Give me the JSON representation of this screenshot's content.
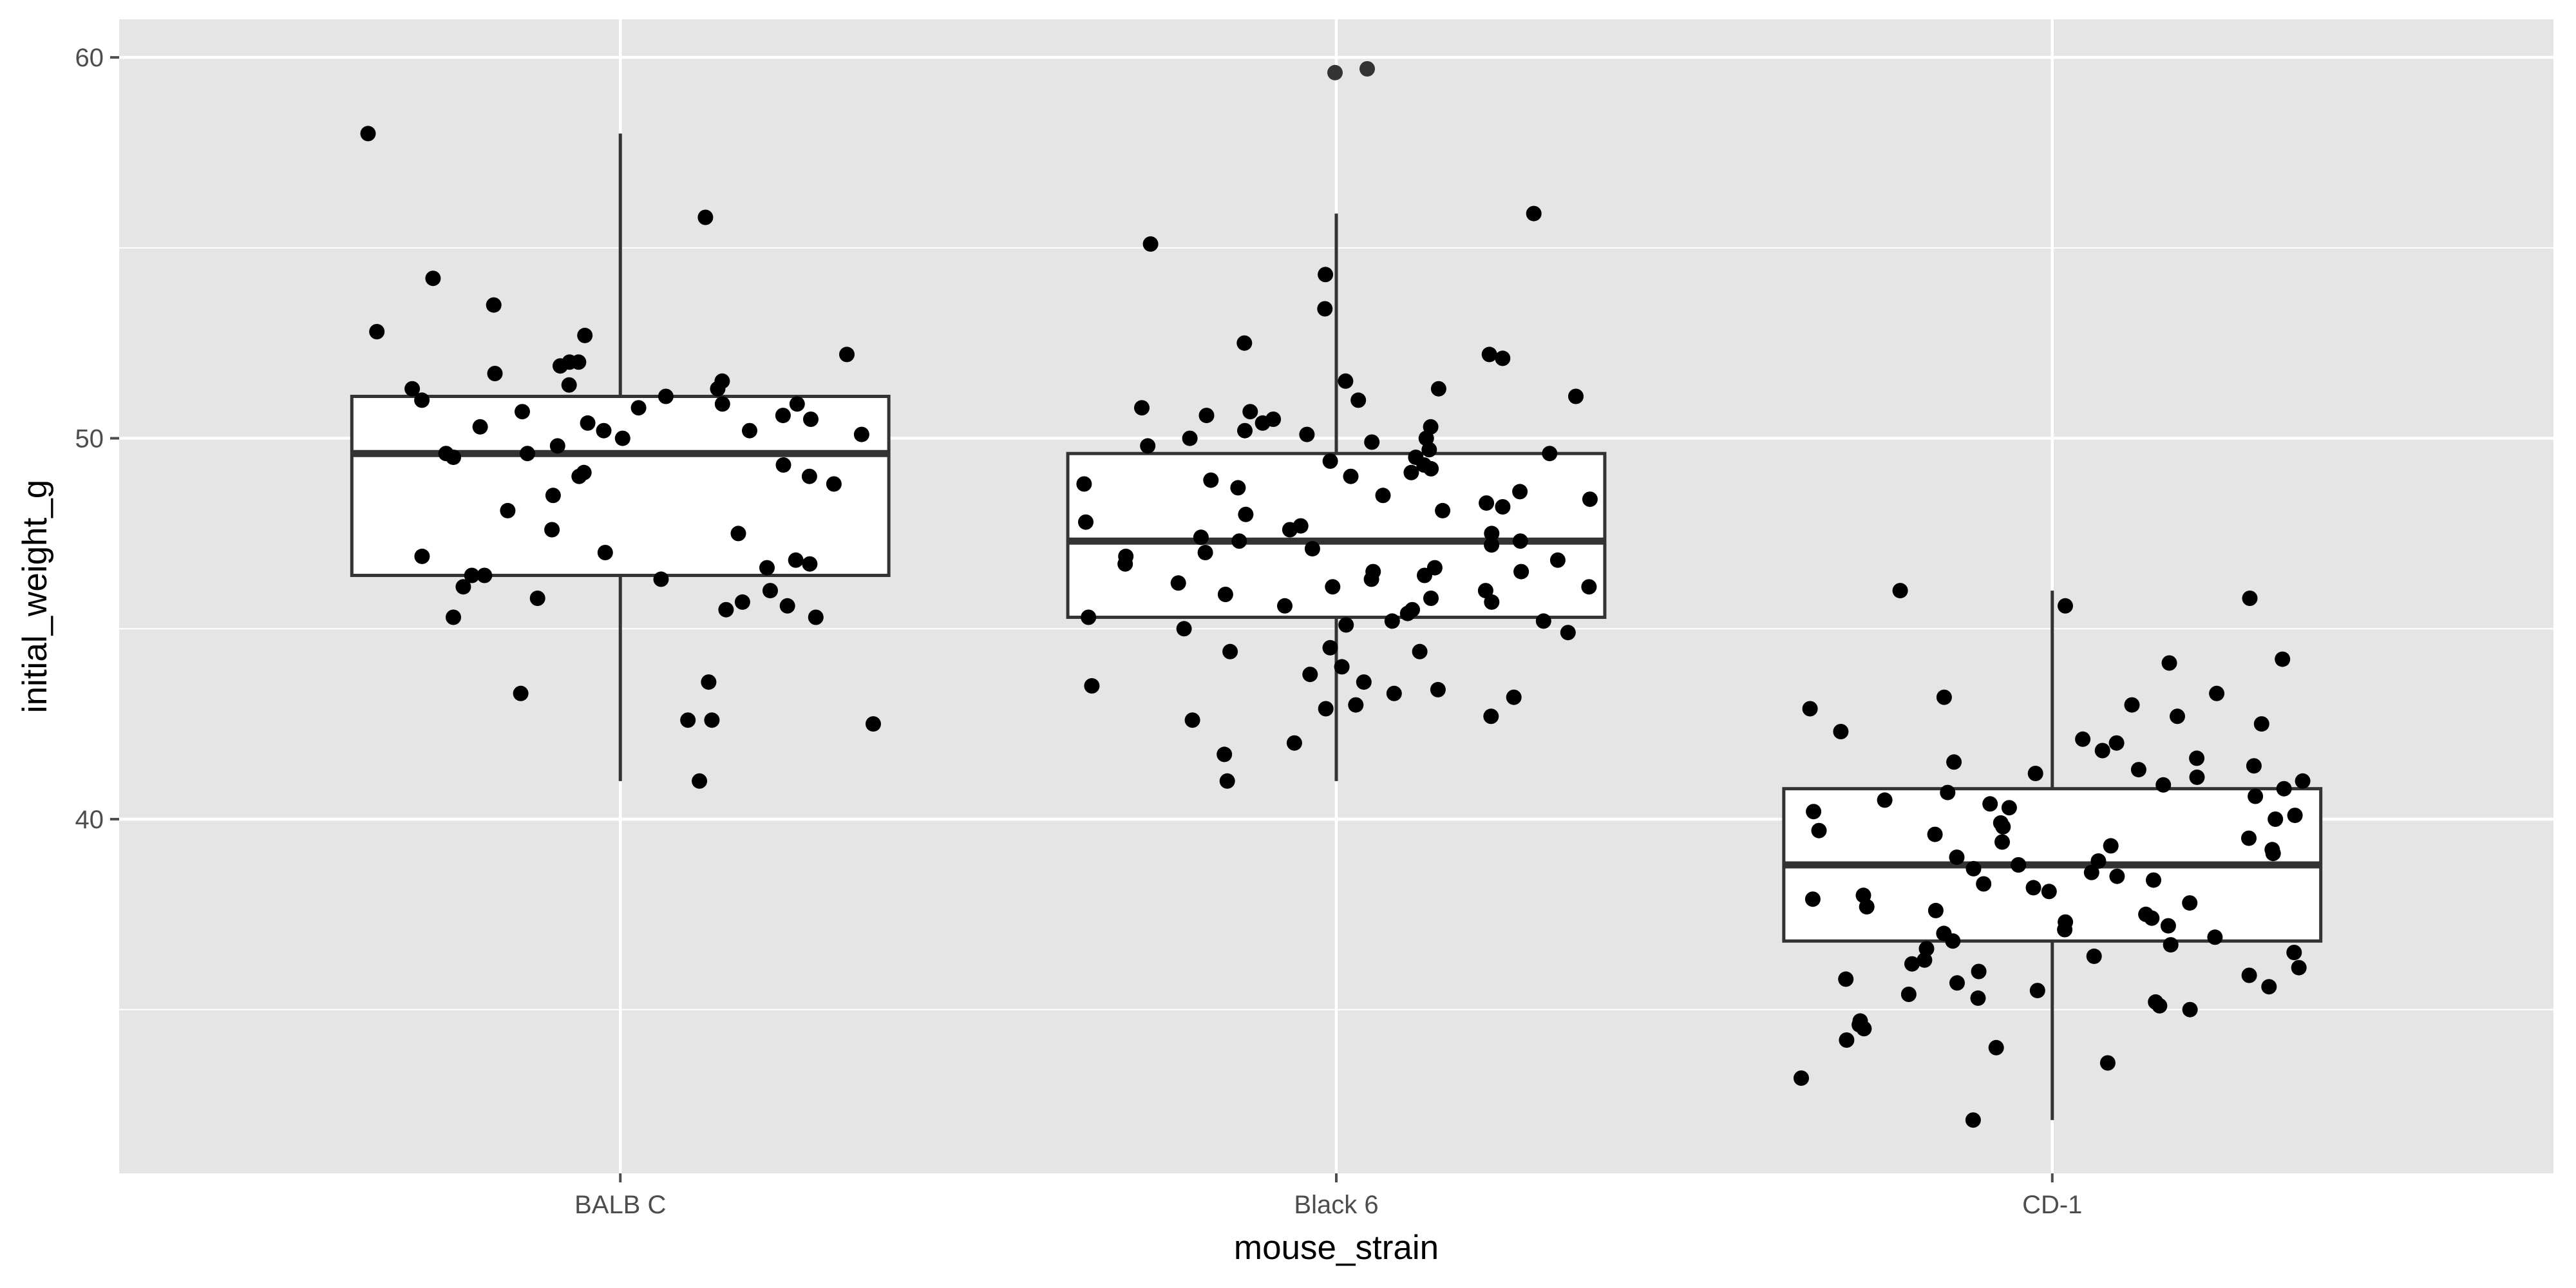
{
  "chart_data": {
    "type": "boxplot",
    "xlabel": "mouse_strain",
    "ylabel": "initial_weight_g",
    "categories": [
      "BALB C",
      "Black 6",
      "CD-1"
    ],
    "ylim": [
      30.7,
      61.0
    ],
    "yticks": [
      40,
      50,
      60
    ],
    "yminor": [
      35,
      45,
      55
    ],
    "grid": true,
    "colors": {
      "panel": "#e5e5e5",
      "grid": "#ffffff",
      "box_fill": "#ffffff",
      "box_line": "#333333",
      "point": "#000000",
      "tick": "#4d4d4d"
    },
    "boxes": [
      {
        "category": "BALB C",
        "whisker_low": 41.0,
        "q1": 46.4,
        "median": 49.6,
        "q3": 51.1,
        "whisker_high": 58.0
      },
      {
        "category": "Black 6",
        "whisker_low": 41.0,
        "q1": 45.3,
        "median": 47.3,
        "q3": 49.6,
        "whisker_high": 55.9
      },
      {
        "category": "CD-1",
        "whisker_low": 32.1,
        "q1": 36.8,
        "median": 38.8,
        "q3": 40.8,
        "whisker_high": 46.0
      }
    ],
    "outliers": [
      {
        "category": "Black 6",
        "y": 59.6
      },
      {
        "category": "Black 6",
        "y": 59.7
      }
    ],
    "points": [
      {
        "category": "BALB C",
        "y": 41.0
      },
      {
        "category": "BALB C",
        "y": 43.3
      },
      {
        "category": "BALB C",
        "y": 42.6
      },
      {
        "category": "BALB C",
        "y": 42.5
      },
      {
        "category": "BALB C",
        "y": 42.6
      },
      {
        "category": "BALB C",
        "y": 43.6
      },
      {
        "category": "BALB C",
        "y": 45.3
      },
      {
        "category": "BALB C",
        "y": 45.3
      },
      {
        "category": "BALB C",
        "y": 45.5
      },
      {
        "category": "BALB C",
        "y": 45.6
      },
      {
        "category": "BALB C",
        "y": 45.7
      },
      {
        "category": "BALB C",
        "y": 45.8
      },
      {
        "category": "BALB C",
        "y": 46.0
      },
      {
        "category": "BALB C",
        "y": 46.1
      },
      {
        "category": "BALB C",
        "y": 46.3
      },
      {
        "category": "BALB C",
        "y": 46.4
      },
      {
        "category": "BALB C",
        "y": 46.4
      },
      {
        "category": "BALB C",
        "y": 46.6
      },
      {
        "category": "BALB C",
        "y": 46.7
      },
      {
        "category": "BALB C",
        "y": 46.8
      },
      {
        "category": "BALB C",
        "y": 46.9
      },
      {
        "category": "BALB C",
        "y": 47.0
      },
      {
        "category": "BALB C",
        "y": 47.5
      },
      {
        "category": "BALB C",
        "y": 47.6
      },
      {
        "category": "BALB C",
        "y": 48.1
      },
      {
        "category": "BALB C",
        "y": 48.5
      },
      {
        "category": "BALB C",
        "y": 48.8
      },
      {
        "category": "BALB C",
        "y": 49.0
      },
      {
        "category": "BALB C",
        "y": 49.0
      },
      {
        "category": "BALB C",
        "y": 49.1
      },
      {
        "category": "BALB C",
        "y": 49.3
      },
      {
        "category": "BALB C",
        "y": 49.5
      },
      {
        "category": "BALB C",
        "y": 49.6
      },
      {
        "category": "BALB C",
        "y": 49.6
      },
      {
        "category": "BALB C",
        "y": 49.8
      },
      {
        "category": "BALB C",
        "y": 50.0
      },
      {
        "category": "BALB C",
        "y": 50.1
      },
      {
        "category": "BALB C",
        "y": 50.2
      },
      {
        "category": "BALB C",
        "y": 50.2
      },
      {
        "category": "BALB C",
        "y": 50.3
      },
      {
        "category": "BALB C",
        "y": 50.4
      },
      {
        "category": "BALB C",
        "y": 50.5
      },
      {
        "category": "BALB C",
        "y": 50.6
      },
      {
        "category": "BALB C",
        "y": 50.7
      },
      {
        "category": "BALB C",
        "y": 50.8
      },
      {
        "category": "BALB C",
        "y": 50.9
      },
      {
        "category": "BALB C",
        "y": 50.9
      },
      {
        "category": "BALB C",
        "y": 51.0
      },
      {
        "category": "BALB C",
        "y": 51.1
      },
      {
        "category": "BALB C",
        "y": 51.3
      },
      {
        "category": "BALB C",
        "y": 51.3
      },
      {
        "category": "BALB C",
        "y": 51.4
      },
      {
        "category": "BALB C",
        "y": 51.5
      },
      {
        "category": "BALB C",
        "y": 51.7
      },
      {
        "category": "BALB C",
        "y": 51.9
      },
      {
        "category": "BALB C",
        "y": 52.0
      },
      {
        "category": "BALB C",
        "y": 52.0
      },
      {
        "category": "BALB C",
        "y": 52.2
      },
      {
        "category": "BALB C",
        "y": 52.7
      },
      {
        "category": "BALB C",
        "y": 52.8
      },
      {
        "category": "BALB C",
        "y": 53.5
      },
      {
        "category": "BALB C",
        "y": 54.2
      },
      {
        "category": "BALB C",
        "y": 55.8
      },
      {
        "category": "BALB C",
        "y": 58.0
      },
      {
        "category": "Black 6",
        "y": 41.0
      },
      {
        "category": "Black 6",
        "y": 41.7
      },
      {
        "category": "Black 6",
        "y": 42.0
      },
      {
        "category": "Black 6",
        "y": 42.6
      },
      {
        "category": "Black 6",
        "y": 42.7
      },
      {
        "category": "Black 6",
        "y": 42.9
      },
      {
        "category": "Black 6",
        "y": 43.0
      },
      {
        "category": "Black 6",
        "y": 43.2
      },
      {
        "category": "Black 6",
        "y": 43.3
      },
      {
        "category": "Black 6",
        "y": 43.4
      },
      {
        "category": "Black 6",
        "y": 43.5
      },
      {
        "category": "Black 6",
        "y": 43.6
      },
      {
        "category": "Black 6",
        "y": 43.8
      },
      {
        "category": "Black 6",
        "y": 44.0
      },
      {
        "category": "Black 6",
        "y": 44.4
      },
      {
        "category": "Black 6",
        "y": 44.4
      },
      {
        "category": "Black 6",
        "y": 44.5
      },
      {
        "category": "Black 6",
        "y": 44.9
      },
      {
        "category": "Black 6",
        "y": 45.0
      },
      {
        "category": "Black 6",
        "y": 45.1
      },
      {
        "category": "Black 6",
        "y": 45.2
      },
      {
        "category": "Black 6",
        "y": 45.2
      },
      {
        "category": "Black 6",
        "y": 45.3
      },
      {
        "category": "Black 6",
        "y": 45.4
      },
      {
        "category": "Black 6",
        "y": 45.5
      },
      {
        "category": "Black 6",
        "y": 45.6
      },
      {
        "category": "Black 6",
        "y": 45.7
      },
      {
        "category": "Black 6",
        "y": 45.8
      },
      {
        "category": "Black 6",
        "y": 45.9
      },
      {
        "category": "Black 6",
        "y": 46.0
      },
      {
        "category": "Black 6",
        "y": 46.1
      },
      {
        "category": "Black 6",
        "y": 46.1
      },
      {
        "category": "Black 6",
        "y": 46.2
      },
      {
        "category": "Black 6",
        "y": 46.3
      },
      {
        "category": "Black 6",
        "y": 46.4
      },
      {
        "category": "Black 6",
        "y": 46.5
      },
      {
        "category": "Black 6",
        "y": 46.5
      },
      {
        "category": "Black 6",
        "y": 46.6
      },
      {
        "category": "Black 6",
        "y": 46.7
      },
      {
        "category": "Black 6",
        "y": 46.8
      },
      {
        "category": "Black 6",
        "y": 46.9
      },
      {
        "category": "Black 6",
        "y": 47.0
      },
      {
        "category": "Black 6",
        "y": 47.1
      },
      {
        "category": "Black 6",
        "y": 47.2
      },
      {
        "category": "Black 6",
        "y": 47.3
      },
      {
        "category": "Black 6",
        "y": 47.3
      },
      {
        "category": "Black 6",
        "y": 47.4
      },
      {
        "category": "Black 6",
        "y": 47.5
      },
      {
        "category": "Black 6",
        "y": 47.6
      },
      {
        "category": "Black 6",
        "y": 47.7
      },
      {
        "category": "Black 6",
        "y": 47.8
      },
      {
        "category": "Black 6",
        "y": 48.0
      },
      {
        "category": "Black 6",
        "y": 48.1
      },
      {
        "category": "Black 6",
        "y": 48.2
      },
      {
        "category": "Black 6",
        "y": 48.3
      },
      {
        "category": "Black 6",
        "y": 48.4
      },
      {
        "category": "Black 6",
        "y": 48.5
      },
      {
        "category": "Black 6",
        "y": 48.6
      },
      {
        "category": "Black 6",
        "y": 48.7
      },
      {
        "category": "Black 6",
        "y": 48.8
      },
      {
        "category": "Black 6",
        "y": 48.9
      },
      {
        "category": "Black 6",
        "y": 49.0
      },
      {
        "category": "Black 6",
        "y": 49.1
      },
      {
        "category": "Black 6",
        "y": 49.2
      },
      {
        "category": "Black 6",
        "y": 49.3
      },
      {
        "category": "Black 6",
        "y": 49.4
      },
      {
        "category": "Black 6",
        "y": 49.5
      },
      {
        "category": "Black 6",
        "y": 49.6
      },
      {
        "category": "Black 6",
        "y": 49.7
      },
      {
        "category": "Black 6",
        "y": 49.8
      },
      {
        "category": "Black 6",
        "y": 49.9
      },
      {
        "category": "Black 6",
        "y": 50.0
      },
      {
        "category": "Black 6",
        "y": 50.0
      },
      {
        "category": "Black 6",
        "y": 50.1
      },
      {
        "category": "Black 6",
        "y": 50.2
      },
      {
        "category": "Black 6",
        "y": 50.3
      },
      {
        "category": "Black 6",
        "y": 50.4
      },
      {
        "category": "Black 6",
        "y": 50.5
      },
      {
        "category": "Black 6",
        "y": 50.6
      },
      {
        "category": "Black 6",
        "y": 50.7
      },
      {
        "category": "Black 6",
        "y": 50.8
      },
      {
        "category": "Black 6",
        "y": 51.0
      },
      {
        "category": "Black 6",
        "y": 51.1
      },
      {
        "category": "Black 6",
        "y": 51.3
      },
      {
        "category": "Black 6",
        "y": 51.5
      },
      {
        "category": "Black 6",
        "y": 52.1
      },
      {
        "category": "Black 6",
        "y": 52.2
      },
      {
        "category": "Black 6",
        "y": 52.5
      },
      {
        "category": "Black 6",
        "y": 53.4
      },
      {
        "category": "Black 6",
        "y": 54.3
      },
      {
        "category": "Black 6",
        "y": 55.1
      },
      {
        "category": "Black 6",
        "y": 55.9
      },
      {
        "category": "CD-1",
        "y": 32.1
      },
      {
        "category": "CD-1",
        "y": 33.2
      },
      {
        "category": "CD-1",
        "y": 33.6
      },
      {
        "category": "CD-1",
        "y": 34.0
      },
      {
        "category": "CD-1",
        "y": 34.2
      },
      {
        "category": "CD-1",
        "y": 34.5
      },
      {
        "category": "CD-1",
        "y": 34.6
      },
      {
        "category": "CD-1",
        "y": 34.7
      },
      {
        "category": "CD-1",
        "y": 35.0
      },
      {
        "category": "CD-1",
        "y": 35.1
      },
      {
        "category": "CD-1",
        "y": 35.2
      },
      {
        "category": "CD-1",
        "y": 35.3
      },
      {
        "category": "CD-1",
        "y": 35.4
      },
      {
        "category": "CD-1",
        "y": 35.5
      },
      {
        "category": "CD-1",
        "y": 35.6
      },
      {
        "category": "CD-1",
        "y": 35.7
      },
      {
        "category": "CD-1",
        "y": 35.8
      },
      {
        "category": "CD-1",
        "y": 35.9
      },
      {
        "category": "CD-1",
        "y": 36.0
      },
      {
        "category": "CD-1",
        "y": 36.1
      },
      {
        "category": "CD-1",
        "y": 36.2
      },
      {
        "category": "CD-1",
        "y": 36.3
      },
      {
        "category": "CD-1",
        "y": 36.4
      },
      {
        "category": "CD-1",
        "y": 36.5
      },
      {
        "category": "CD-1",
        "y": 36.6
      },
      {
        "category": "CD-1",
        "y": 36.7
      },
      {
        "category": "CD-1",
        "y": 36.8
      },
      {
        "category": "CD-1",
        "y": 36.9
      },
      {
        "category": "CD-1",
        "y": 37.0
      },
      {
        "category": "CD-1",
        "y": 37.1
      },
      {
        "category": "CD-1",
        "y": 37.2
      },
      {
        "category": "CD-1",
        "y": 37.3
      },
      {
        "category": "CD-1",
        "y": 37.4
      },
      {
        "category": "CD-1",
        "y": 37.5
      },
      {
        "category": "CD-1",
        "y": 37.6
      },
      {
        "category": "CD-1",
        "y": 37.7
      },
      {
        "category": "CD-1",
        "y": 37.8
      },
      {
        "category": "CD-1",
        "y": 37.9
      },
      {
        "category": "CD-1",
        "y": 38.0
      },
      {
        "category": "CD-1",
        "y": 38.1
      },
      {
        "category": "CD-1",
        "y": 38.2
      },
      {
        "category": "CD-1",
        "y": 38.3
      },
      {
        "category": "CD-1",
        "y": 38.4
      },
      {
        "category": "CD-1",
        "y": 38.5
      },
      {
        "category": "CD-1",
        "y": 38.6
      },
      {
        "category": "CD-1",
        "y": 38.7
      },
      {
        "category": "CD-1",
        "y": 38.8
      },
      {
        "category": "CD-1",
        "y": 38.8
      },
      {
        "category": "CD-1",
        "y": 38.9
      },
      {
        "category": "CD-1",
        "y": 39.0
      },
      {
        "category": "CD-1",
        "y": 39.1
      },
      {
        "category": "CD-1",
        "y": 39.2
      },
      {
        "category": "CD-1",
        "y": 39.3
      },
      {
        "category": "CD-1",
        "y": 39.4
      },
      {
        "category": "CD-1",
        "y": 39.5
      },
      {
        "category": "CD-1",
        "y": 39.6
      },
      {
        "category": "CD-1",
        "y": 39.7
      },
      {
        "category": "CD-1",
        "y": 39.8
      },
      {
        "category": "CD-1",
        "y": 39.9
      },
      {
        "category": "CD-1",
        "y": 40.0
      },
      {
        "category": "CD-1",
        "y": 40.1
      },
      {
        "category": "CD-1",
        "y": 40.2
      },
      {
        "category": "CD-1",
        "y": 40.3
      },
      {
        "category": "CD-1",
        "y": 40.4
      },
      {
        "category": "CD-1",
        "y": 40.5
      },
      {
        "category": "CD-1",
        "y": 40.6
      },
      {
        "category": "CD-1",
        "y": 40.7
      },
      {
        "category": "CD-1",
        "y": 40.8
      },
      {
        "category": "CD-1",
        "y": 40.9
      },
      {
        "category": "CD-1",
        "y": 41.0
      },
      {
        "category": "CD-1",
        "y": 41.1
      },
      {
        "category": "CD-1",
        "y": 41.2
      },
      {
        "category": "CD-1",
        "y": 41.3
      },
      {
        "category": "CD-1",
        "y": 41.4
      },
      {
        "category": "CD-1",
        "y": 41.5
      },
      {
        "category": "CD-1",
        "y": 41.6
      },
      {
        "category": "CD-1",
        "y": 41.8
      },
      {
        "category": "CD-1",
        "y": 42.0
      },
      {
        "category": "CD-1",
        "y": 42.1
      },
      {
        "category": "CD-1",
        "y": 42.3
      },
      {
        "category": "CD-1",
        "y": 42.5
      },
      {
        "category": "CD-1",
        "y": 42.7
      },
      {
        "category": "CD-1",
        "y": 42.9
      },
      {
        "category": "CD-1",
        "y": 43.0
      },
      {
        "category": "CD-1",
        "y": 43.2
      },
      {
        "category": "CD-1",
        "y": 43.3
      },
      {
        "category": "CD-1",
        "y": 44.1
      },
      {
        "category": "CD-1",
        "y": 44.2
      },
      {
        "category": "CD-1",
        "y": 45.6
      },
      {
        "category": "CD-1",
        "y": 45.8
      },
      {
        "category": "CD-1",
        "y": 46.0
      }
    ]
  }
}
